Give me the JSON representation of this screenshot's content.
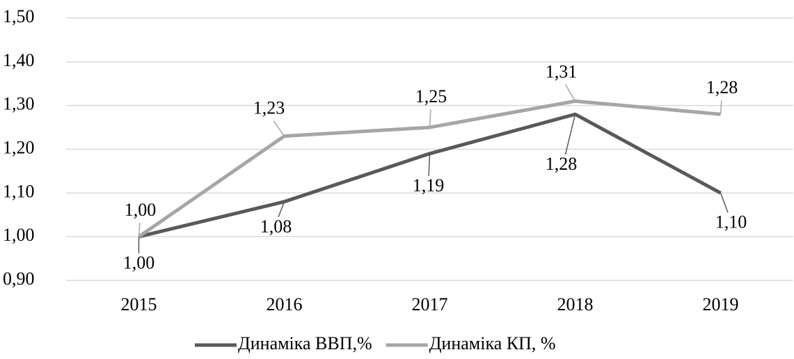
{
  "chart_data": {
    "type": "line",
    "categories": [
      "2015",
      "2016",
      "2017",
      "2018",
      "2019"
    ],
    "series": [
      {
        "name": "Динаміка ВВП,%",
        "color": "#595959",
        "values": [
          1.0,
          1.08,
          1.19,
          1.28,
          1.1
        ],
        "value_labels": [
          "1,00",
          "1,08",
          "1,19",
          "1,28",
          "1,10"
        ]
      },
      {
        "name": "Динаміка КП, %",
        "color": "#a6a6a6",
        "values": [
          1.0,
          1.23,
          1.25,
          1.31,
          1.28
        ],
        "value_labels": [
          "1,00",
          "1,23",
          "1,25",
          "1,31",
          "1,28"
        ]
      }
    ],
    "ylim": [
      0.9,
      1.5
    ],
    "yticks": [
      {
        "value": 0.9,
        "label": "0,90"
      },
      {
        "value": 1.0,
        "label": "1,00"
      },
      {
        "value": 1.1,
        "label": "1,10"
      },
      {
        "value": 1.2,
        "label": "1,20"
      },
      {
        "value": 1.3,
        "label": "1,30"
      },
      {
        "value": 1.4,
        "label": "1,40"
      },
      {
        "value": 1.5,
        "label": "1,50"
      }
    ],
    "grid": true,
    "legend": "bottom"
  }
}
